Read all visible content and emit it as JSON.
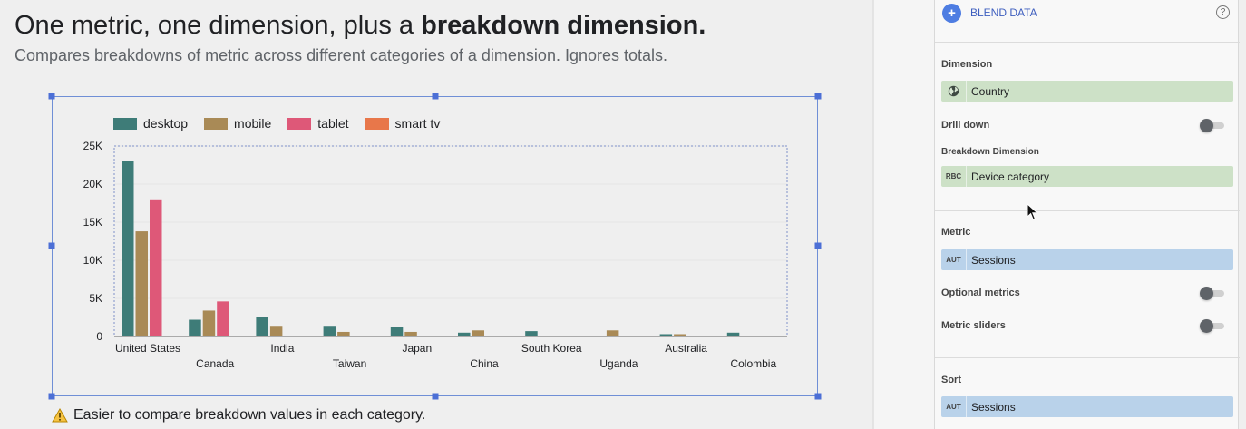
{
  "header": {
    "title_prefix": "One metric, one dimension, plus a ",
    "title_bold": "breakdown dimension.",
    "subtitle": "Compares breakdowns of metric across different categories of a dimension. Ignores totals."
  },
  "footer": {
    "note": "Easier to compare breakdown values in each category."
  },
  "chart_data": {
    "type": "bar",
    "categories": [
      "United States",
      "Canada",
      "India",
      "Taiwan",
      "Japan",
      "China",
      "South Korea",
      "Uganda",
      "Australia",
      "Colombia"
    ],
    "series": [
      {
        "name": "desktop",
        "values": [
          23000,
          2200,
          2600,
          1400,
          1200,
          500,
          700,
          0,
          300,
          500
        ]
      },
      {
        "name": "mobile",
        "values": [
          13800,
          3400,
          1400,
          600,
          600,
          800,
          100,
          800,
          300,
          0
        ]
      },
      {
        "name": "tablet",
        "values": [
          18000,
          4600,
          0,
          0,
          0,
          0,
          0,
          0,
          0,
          0
        ]
      },
      {
        "name": "smart tv",
        "values": [
          0,
          0,
          0,
          0,
          0,
          0,
          0,
          0,
          0,
          0
        ]
      }
    ],
    "colors": [
      "#3e7c78",
      "#a98a56",
      "#de5878",
      "#e8774a"
    ],
    "yticks": [
      "0",
      "5K",
      "10K",
      "15K",
      "20K",
      "25K"
    ],
    "ylim": [
      0,
      25000
    ],
    "xlabel": "",
    "ylabel": "",
    "grid": true,
    "legend": "top-left"
  },
  "panel": {
    "blend_data": "BLEND DATA",
    "help_icon": "?",
    "dimension_label": "Dimension",
    "dimension_type": "globe-icon",
    "dimension_value": "Country",
    "drill_down_label": "Drill down",
    "breakdown_label": "Breakdown Dimension",
    "breakdown_type": "RBC",
    "breakdown_value": "Device category",
    "metric_label": "Metric",
    "metric_type": "AUT",
    "metric_value": "Sessions",
    "optional_metrics_label": "Optional metrics",
    "metric_sliders_label": "Metric sliders",
    "sort_label": "Sort",
    "sort_type": "AUT",
    "sort_value": "Sessions"
  },
  "icons": {
    "warning": "warning-icon",
    "blend_plus": "plus-icon",
    "cursor": "cursor-icon"
  }
}
